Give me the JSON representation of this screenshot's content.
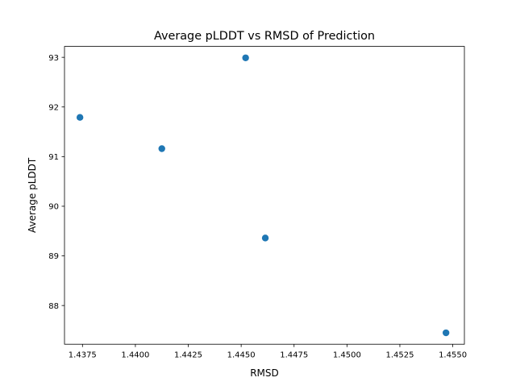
{
  "chart_data": {
    "type": "scatter",
    "title": "Average pLDDT vs RMSD of Prediction",
    "xlabel": "RMSD",
    "ylabel": "Average pLDDT",
    "xlim": [
      1.43665,
      1.45555
    ],
    "ylim": [
      87.22,
      93.22
    ],
    "x_ticks": [
      1.4375,
      1.44,
      1.4425,
      1.445,
      1.4475,
      1.45,
      1.4525,
      1.455
    ],
    "x_tick_labels": [
      "1.4375",
      "1.4400",
      "1.4425",
      "1.4450",
      "1.4475",
      "1.4500",
      "1.4525",
      "1.4550"
    ],
    "y_ticks": [
      88,
      89,
      90,
      91,
      92,
      93
    ],
    "y_tick_labels": [
      "88",
      "89",
      "90",
      "91",
      "92",
      "93"
    ],
    "grid": false,
    "marker_color": "#1f77b4",
    "points": [
      {
        "x": 1.43738,
        "y": 91.79
      },
      {
        "x": 1.44125,
        "y": 91.16
      },
      {
        "x": 1.44521,
        "y": 92.99
      },
      {
        "x": 1.44614,
        "y": 89.36
      },
      {
        "x": 1.45468,
        "y": 87.45
      }
    ]
  }
}
